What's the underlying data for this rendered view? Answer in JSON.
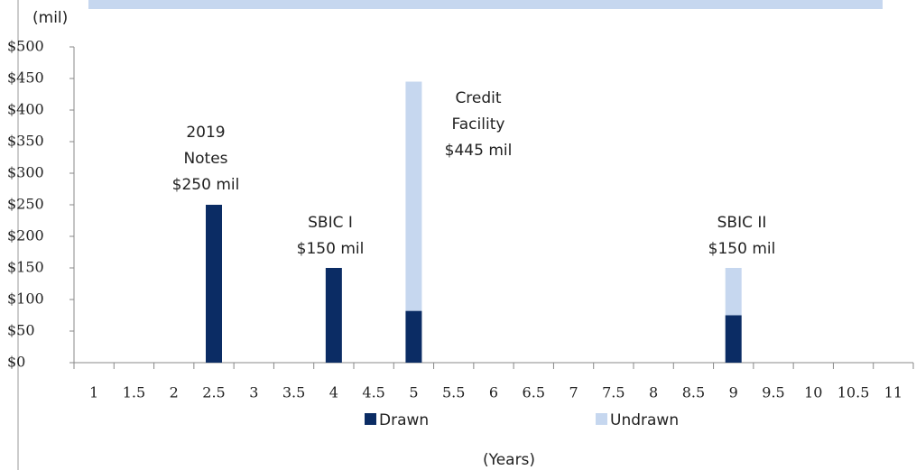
{
  "chart_data": {
    "type": "bar",
    "stacked": true,
    "y_unit": "(mil)",
    "x_label": "(Years)",
    "categories": [
      "1",
      "1.5",
      "2",
      "2.5",
      "3",
      "3.5",
      "4",
      "4.5",
      "5",
      "5.5",
      "6",
      "6.5",
      "7",
      "7.5",
      "8",
      "8.5",
      "9",
      "9.5",
      "10",
      "10.5",
      "11"
    ],
    "series": [
      {
        "name": "Drawn",
        "color": "#0b2c64",
        "values": [
          null,
          null,
          null,
          250,
          null,
          null,
          150,
          null,
          82,
          null,
          null,
          null,
          null,
          null,
          null,
          null,
          75,
          null,
          null,
          null,
          null
        ]
      },
      {
        "name": "Undrawn",
        "color": "#c6d7ef",
        "values": [
          null,
          null,
          null,
          null,
          null,
          null,
          null,
          null,
          363,
          null,
          null,
          null,
          null,
          null,
          null,
          null,
          75,
          null,
          null,
          null,
          null
        ]
      }
    ],
    "annotations": [
      [
        "2019",
        "Notes",
        "$250 mil"
      ],
      [
        "SBIC I",
        "$150 mil"
      ],
      [
        "Credit",
        "Facility",
        "$445 mil"
      ],
      [
        "SBIC II",
        "$150 mil"
      ]
    ],
    "ylim": [
      0,
      500
    ],
    "yticks": [
      {
        "value": 0,
        "label": "$0"
      },
      {
        "value": 50,
        "label": "$50"
      },
      {
        "value": 100,
        "label": "$100"
      },
      {
        "value": 150,
        "label": "$150"
      },
      {
        "value": 200,
        "label": "$200"
      },
      {
        "value": 250,
        "label": "$250"
      },
      {
        "value": 300,
        "label": "$300"
      },
      {
        "value": 350,
        "label": "$350"
      },
      {
        "value": 400,
        "label": "$400"
      },
      {
        "value": 450,
        "label": "$450"
      },
      {
        "value": 500,
        "label": "$500"
      }
    ],
    "legend": "bottom"
  }
}
